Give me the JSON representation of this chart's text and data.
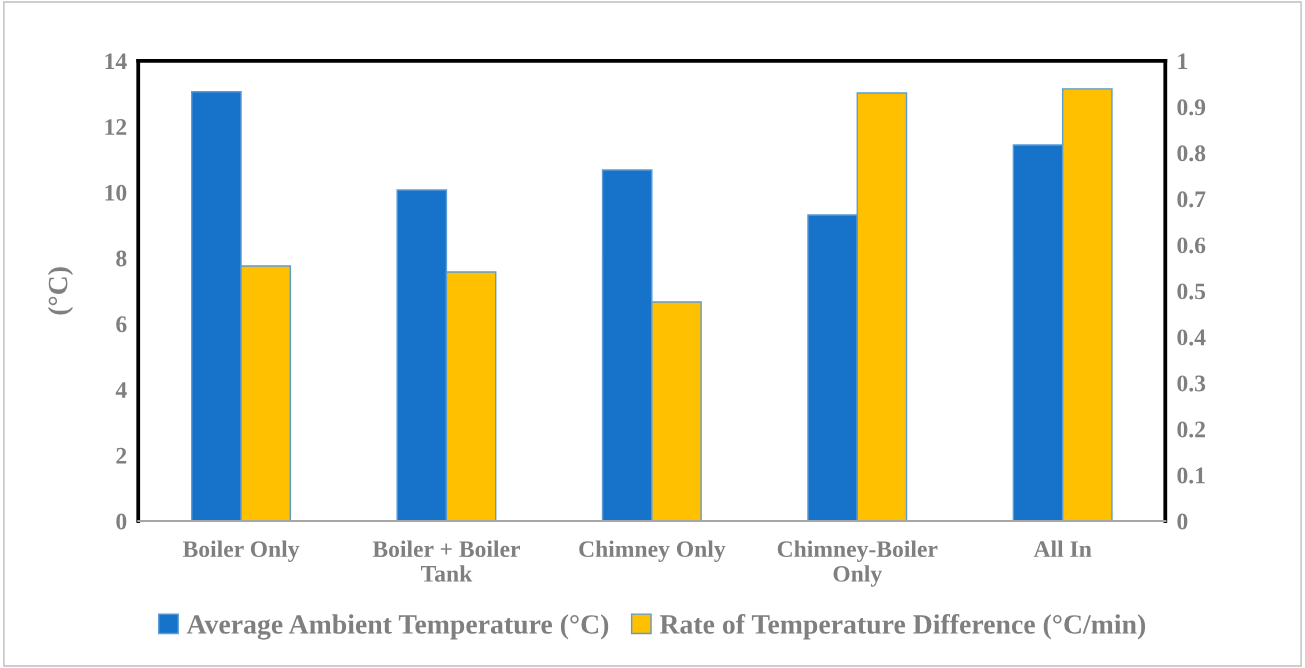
{
  "chart_data": {
    "type": "bar",
    "ylabel": "(°C)",
    "categories": [
      "Boiler Only",
      "Boiler + Boiler\nTank",
      "Chimney Only",
      "Chimney-Boiler\nOnly",
      "All In"
    ],
    "series": [
      {
        "name": "Average Ambient Temperature (°C)",
        "color": "#1772c9",
        "values": [
          13.06,
          10.07,
          10.68,
          9.31,
          11.44
        ]
      },
      {
        "name": "Rate of Temperature Difference (°C/min)",
        "color": "#ffc000",
        "axis": "y2",
        "values": [
          0.554,
          0.541,
          0.476,
          0.93,
          0.939
        ]
      }
    ],
    "ylim": [
      0,
      14
    ],
    "yticks": [
      0,
      2,
      4,
      6,
      8,
      10,
      12,
      14
    ],
    "y2lim": [
      0,
      1
    ],
    "y2ticks": [
      0,
      0.1,
      0.2,
      0.3,
      0.4,
      0.5,
      0.6,
      0.7,
      0.8,
      0.9,
      1
    ],
    "grid": false,
    "legend": "bottom"
  }
}
